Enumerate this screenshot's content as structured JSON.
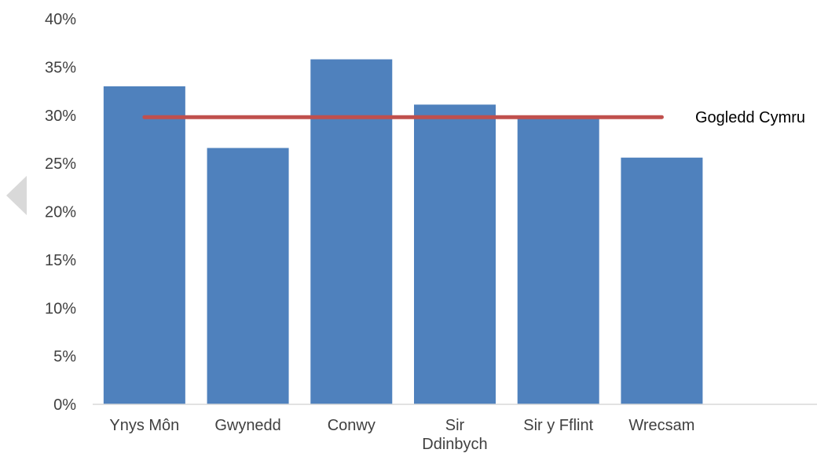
{
  "chart_data": {
    "type": "bar",
    "categories": [
      "Ynys Môn",
      "Gwynedd",
      "Conwy",
      "Sir Ddinbych",
      "Sir y Fflint",
      "Wrecsam"
    ],
    "category_lines": [
      [
        "Ynys Môn"
      ],
      [
        "Gwynedd"
      ],
      [
        "Conwy"
      ],
      [
        "Sir",
        "Ddinbych"
      ],
      [
        "Sir y Fflint"
      ],
      [
        "Wrecsam"
      ]
    ],
    "values": [
      0.33,
      0.266,
      0.358,
      0.311,
      0.297,
      0.256
    ],
    "reference_line": {
      "name": "Gogledd Cymru",
      "value": 0.298
    },
    "yticks": [
      "0%",
      "5%",
      "10%",
      "15%",
      "20%",
      "25%",
      "30%",
      "35%",
      "40%"
    ],
    "ylim": [
      0,
      0.4
    ],
    "grid": false,
    "title": "",
    "xlabel": "",
    "ylabel": ""
  },
  "colors": {
    "bar": "#4F81BD",
    "reference_line": "#C0504D",
    "axis": "#D9D9D9",
    "text": "#404040",
    "nav_arrow": "#D9D9D9"
  },
  "nav": {
    "icon": "chevron-left-icon"
  }
}
